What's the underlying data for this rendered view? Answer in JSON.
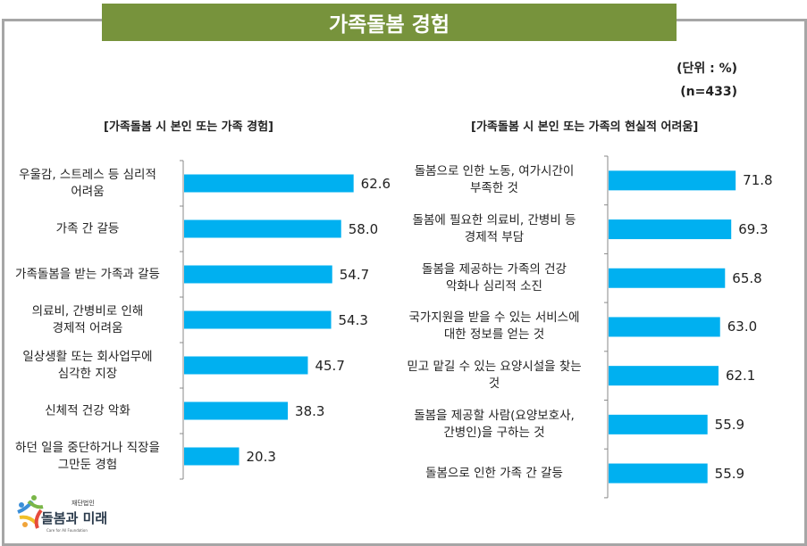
{
  "title": "가족돌봄 경험",
  "unit_note": "(단위 : %)",
  "sample_note": "(n=433)",
  "colors": {
    "bar": "#00b0f0",
    "banner": "#77933c",
    "frame": "#a6a6a6"
  },
  "logo": {
    "name": "재단법인 돌봄과 미래",
    "subtitle": "Care for All Foundation"
  },
  "chart_data": [
    {
      "type": "bar",
      "orientation": "horizontal",
      "title": "[가족돌봄 시 본인 또는 가족 경험]",
      "categories": [
        "우울감, 스트레스 등 심리적\n어려움",
        "가족 간 갈등",
        "가족돌봄을 받는 가족과 갈등",
        "의료비, 간병비로 인해\n경제적 어려움",
        "일상생활 또는 회사업무에\n심각한 지장",
        "신체적 건강 악화",
        "하던 일을 중단하거나 직장을\n그만둔  경험"
      ],
      "values": [
        62.6,
        58.0,
        54.7,
        54.3,
        45.7,
        38.3,
        20.3
      ],
      "value_labels": [
        "62.6",
        "58.0",
        "54.7",
        "54.3",
        "45.7",
        "38.3",
        "20.3"
      ],
      "grid": false
    },
    {
      "type": "bar",
      "orientation": "horizontal",
      "title": "[가족돌봄 시 본인 또는 가족의 현실적 어려움]",
      "categories": [
        "돌봄으로 인한 노동, 여가시간이\n부족한 것",
        "돌봄에 필요한 의료비, 간병비 등\n경제적 부담",
        "돌봄을 제공하는 가족의 건강\n악화나 심리적 소진",
        "국가지원을 받을 수 있는 서비스에\n대한 정보를 얻는 것",
        "믿고 맡길 수 있는 요양시설을 찾는\n것",
        "돌봄을 제공할 사람(요양보호사,\n간병인)을 구하는 것",
        "돌봄으로 인한 가족 간 갈등"
      ],
      "values": [
        71.8,
        69.3,
        65.8,
        63.0,
        62.1,
        55.9,
        55.9
      ],
      "value_labels": [
        "71.8",
        "69.3",
        "65.8",
        "63.0",
        "62.1",
        "55.9",
        "55.9"
      ],
      "grid": false
    }
  ]
}
